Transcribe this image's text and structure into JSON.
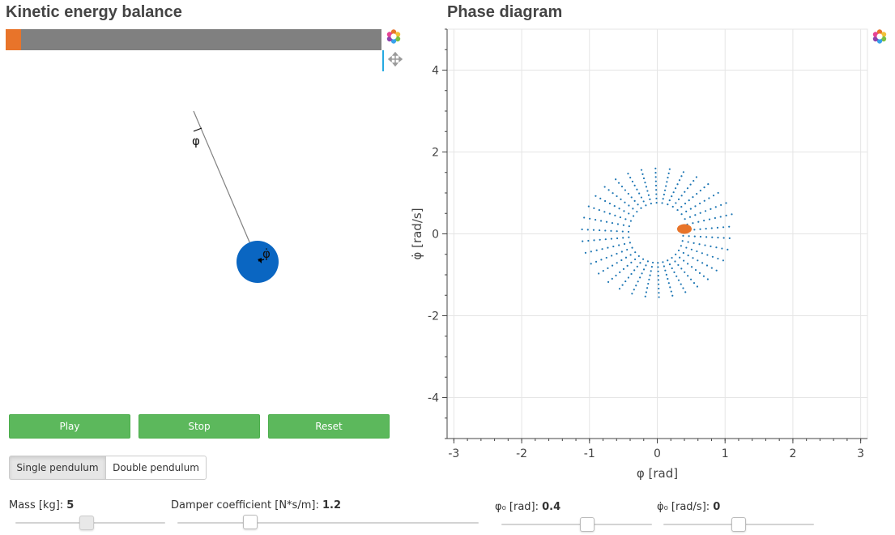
{
  "left_panel": {
    "title": "Kinetic energy balance",
    "energy_bar": {
      "fill_fraction": 0.042,
      "fill_color": "#e8742a",
      "bg_color": "#808080"
    },
    "pendulum": {
      "angle_label": "φ",
      "velocity_label": "φ̇",
      "bob_color": "#0a66c2"
    }
  },
  "toolbar": {
    "logo_icon": "bokeh-logo-icon",
    "pan_icon": "pan-move-icon"
  },
  "buttons": {
    "play": "Play",
    "stop": "Stop",
    "reset": "Reset"
  },
  "mode_toggle": {
    "single": "Single pendulum",
    "double": "Double pendulum",
    "active": "single"
  },
  "sliders": {
    "mass": {
      "label": "Mass [kg]: ",
      "value": "5",
      "disabled": true,
      "fraction": 0.45
    },
    "damper": {
      "label": "Damper coefficient [N*s/m]: ",
      "value": "1.2",
      "fraction": 0.24
    },
    "phi0": {
      "label": "φ₀ [rad]: ",
      "value": "0.4",
      "fraction": 0.57
    },
    "phidot0": {
      "label": "φ̇₀ [rad/s]: ",
      "value": "0",
      "fraction": 0.5
    }
  },
  "right_panel": {
    "title": "Phase diagram",
    "chart_data": {
      "type": "scatter",
      "xlabel": "φ [rad]",
      "ylabel": "φ̇ [rad/s]",
      "xlim": [
        -3.1,
        3.1
      ],
      "ylim": [
        -5,
        5
      ],
      "x_ticks": [
        "-3",
        "-2",
        "-1",
        "0",
        "1",
        "2",
        "3"
      ],
      "y_ticks": [
        "-4",
        "-2",
        "0",
        "2",
        "4"
      ],
      "grid": true,
      "trajectory_color": "#1f77b4",
      "current_point": {
        "x": 0.4,
        "y": 0.12,
        "color": "#e8742a"
      },
      "trajectory_approx": {
        "center": [
          0.0,
          0.0
        ],
        "inner_radius_x": 0.38,
        "inner_radius_y": 0.68,
        "outer_radius_x": 1.15,
        "outer_radius_y": 1.62
      }
    }
  }
}
